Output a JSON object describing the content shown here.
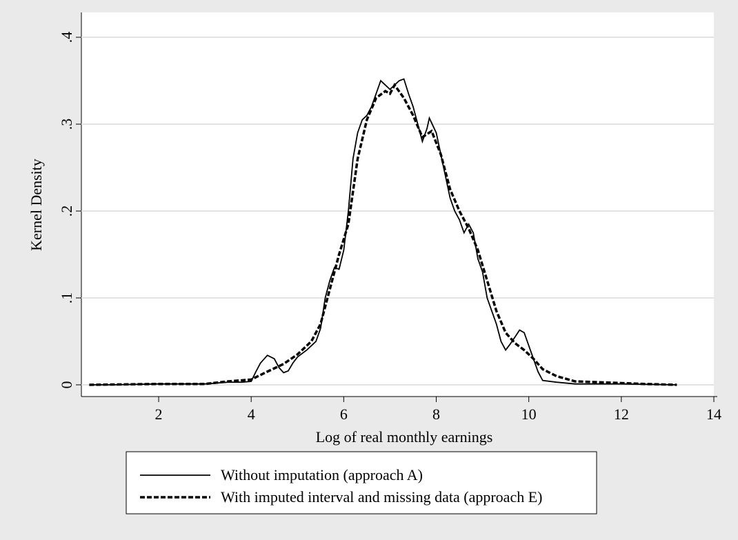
{
  "chart_data": {
    "type": "line",
    "x_label": "Log of real monthly earnings",
    "y_label": "Kernel Density",
    "xlim": [
      0.33,
      14.0
    ],
    "ylim": [
      -0.0135,
      0.4286
    ],
    "xticks": [
      2,
      4,
      6,
      8,
      10,
      12,
      14
    ],
    "yticks": [
      0,
      {
        "value": 0.1,
        "label": ".1"
      },
      {
        "value": 0.2,
        "label": ".2"
      },
      {
        "value": 0.3,
        "label": ".3"
      },
      {
        "value": 0.4,
        "label": ".4"
      }
    ],
    "grid": true,
    "legend_position": "bottom",
    "series": [
      {
        "name": "Without imputation (approach A)",
        "color": "#000000",
        "line_style": "solid",
        "x": [
          0.5,
          1,
          2,
          3,
          3.5,
          3.8,
          4.0,
          4.1,
          4.2,
          4.35,
          4.5,
          4.6,
          4.7,
          4.8,
          4.9,
          5.0,
          5.2,
          5.3,
          5.4,
          5.5,
          5.6,
          5.7,
          5.8,
          5.9,
          6.0,
          6.1,
          6.2,
          6.3,
          6.4,
          6.5,
          6.6,
          6.7,
          6.8,
          6.9,
          7.0,
          7.1,
          7.2,
          7.3,
          7.4,
          7.5,
          7.6,
          7.7,
          7.8,
          7.85,
          8.0,
          8.1,
          8.2,
          8.3,
          8.4,
          8.5,
          8.6,
          8.7,
          8.8,
          8.9,
          9.0,
          9.1,
          9.2,
          9.3,
          9.4,
          9.5,
          9.6,
          9.7,
          9.8,
          9.9,
          10.0,
          10.1,
          10.2,
          10.3,
          10.6,
          11,
          12,
          13.2
        ],
        "values": [
          0,
          0,
          0.001,
          0.001,
          0.003,
          0.003,
          0.004,
          0.015,
          0.025,
          0.034,
          0.03,
          0.02,
          0.014,
          0.016,
          0.025,
          0.032,
          0.04,
          0.045,
          0.05,
          0.065,
          0.1,
          0.12,
          0.135,
          0.133,
          0.155,
          0.2,
          0.26,
          0.29,
          0.305,
          0.31,
          0.32,
          0.335,
          0.35,
          0.345,
          0.34,
          0.345,
          0.35,
          0.352,
          0.335,
          0.32,
          0.3,
          0.28,
          0.295,
          0.307,
          0.29,
          0.265,
          0.24,
          0.215,
          0.2,
          0.19,
          0.175,
          0.185,
          0.175,
          0.145,
          0.13,
          0.1,
          0.085,
          0.07,
          0.05,
          0.04,
          0.047,
          0.055,
          0.063,
          0.06,
          0.045,
          0.03,
          0.015,
          0.005,
          0.003,
          0.001,
          0.001,
          0
        ]
      },
      {
        "name": "With imputed interval and missing data (approach E)",
        "color": "#000000",
        "line_style": "dashed",
        "x": [
          0.5,
          2,
          3,
          3.5,
          4,
          4.3,
          4.7,
          5.0,
          5.3,
          5.5,
          5.7,
          5.9,
          6.1,
          6.3,
          6.5,
          6.7,
          6.9,
          7.0,
          7.1,
          7.3,
          7.5,
          7.7,
          7.9,
          8.1,
          8.3,
          8.5,
          8.7,
          8.9,
          9.1,
          9.3,
          9.5,
          9.7,
          9.9,
          10.1,
          10.3,
          10.6,
          11,
          11.5,
          12,
          12.5,
          13.2
        ],
        "values": [
          0,
          0.001,
          0.001,
          0.004,
          0.006,
          0.014,
          0.024,
          0.035,
          0.05,
          0.07,
          0.11,
          0.15,
          0.185,
          0.26,
          0.305,
          0.33,
          0.338,
          0.335,
          0.345,
          0.33,
          0.31,
          0.285,
          0.292,
          0.265,
          0.225,
          0.2,
          0.18,
          0.155,
          0.12,
          0.085,
          0.06,
          0.048,
          0.04,
          0.03,
          0.018,
          0.01,
          0.004,
          0.003,
          0.002,
          0.001,
          0
        ]
      }
    ]
  }
}
